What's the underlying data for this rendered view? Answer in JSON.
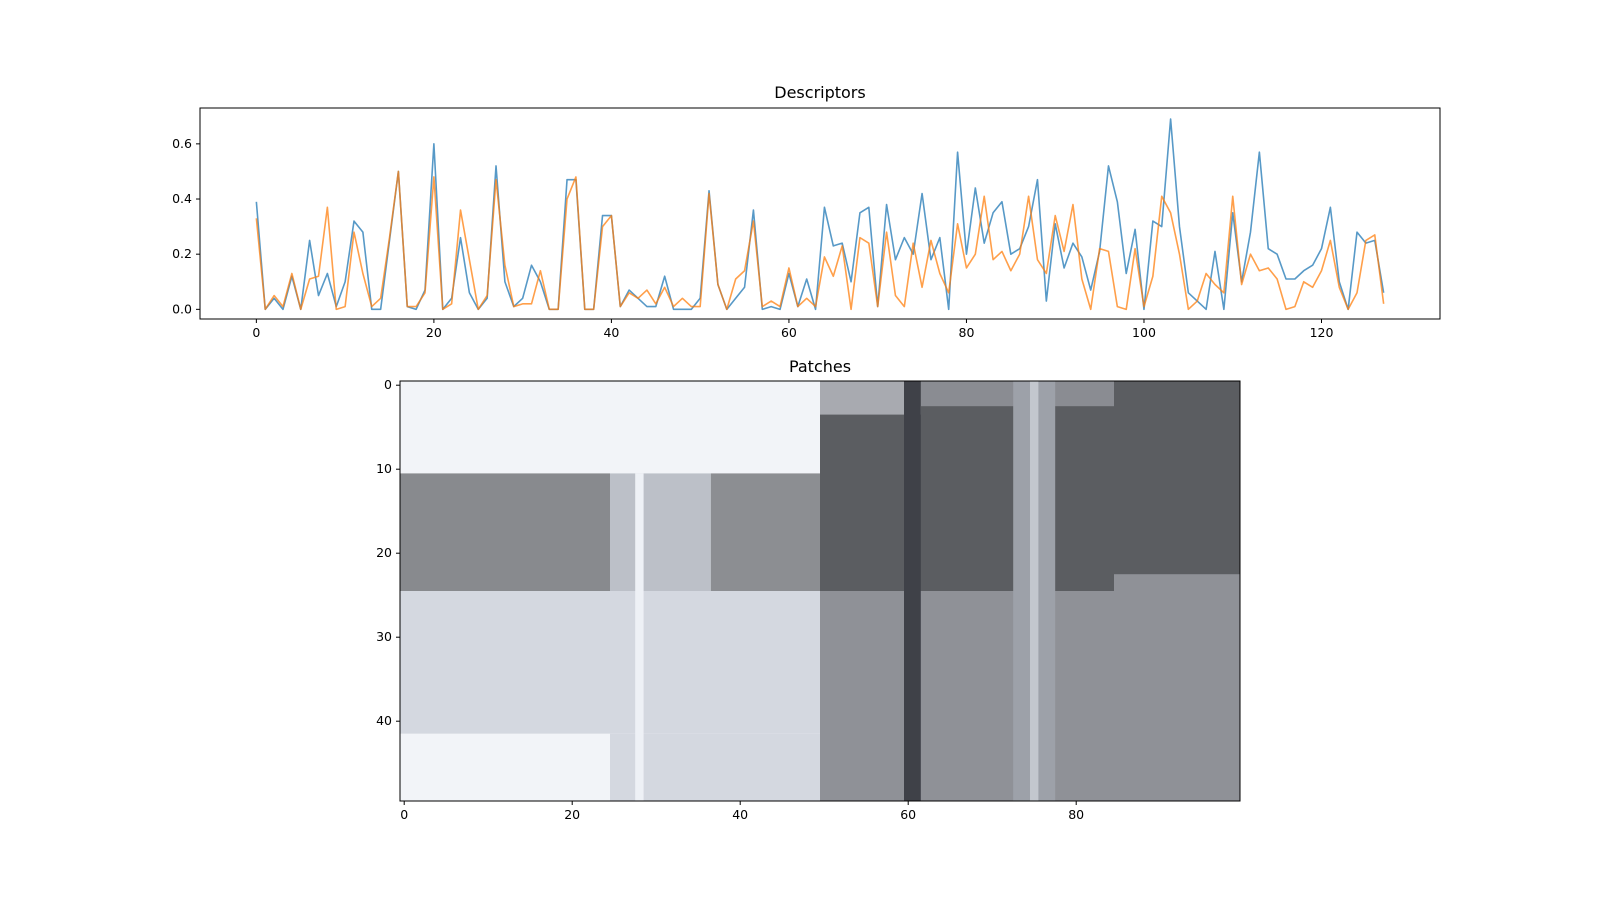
{
  "figure": {
    "background": "#ffffff"
  },
  "chart_data": [
    {
      "type": "line",
      "title": "Descriptors",
      "xlabel": "",
      "ylabel": "",
      "xlim": [
        -6.35,
        133.35
      ],
      "ylim": [
        -0.035,
        0.73
      ],
      "grid": false,
      "xticks": [
        0,
        20,
        40,
        60,
        80,
        100,
        120
      ],
      "yticks": [
        0.0,
        0.2,
        0.4,
        0.6
      ],
      "xtick_labels": [
        "0",
        "20",
        "40",
        "60",
        "80",
        "100",
        "120"
      ],
      "ytick_labels": [
        "0.0",
        "0.2",
        "0.4",
        "0.6"
      ],
      "series": [
        {
          "color": "#1f77b4",
          "values": [
            0.39,
            0.0,
            0.04,
            0.0,
            0.12,
            0.0,
            0.25,
            0.05,
            0.13,
            0.01,
            0.1,
            0.32,
            0.28,
            0.0,
            0.0,
            0.25,
            0.5,
            0.01,
            0.0,
            0.07,
            0.6,
            0.0,
            0.04,
            0.26,
            0.06,
            0.0,
            0.04,
            0.52,
            0.1,
            0.01,
            0.04,
            0.16,
            0.1,
            0.0,
            0.0,
            0.47,
            0.47,
            0.0,
            0.0,
            0.34,
            0.34,
            0.01,
            0.07,
            0.04,
            0.01,
            0.01,
            0.12,
            0.0,
            0.0,
            0.0,
            0.04,
            0.43,
            0.09,
            0.0,
            0.04,
            0.08,
            0.36,
            0.0,
            0.01,
            0.0,
            0.13,
            0.01,
            0.11,
            0.0,
            0.37,
            0.23,
            0.24,
            0.1,
            0.35,
            0.37,
            0.01,
            0.38,
            0.18,
            0.26,
            0.2,
            0.42,
            0.18,
            0.26,
            0.0,
            0.57,
            0.2,
            0.44,
            0.24,
            0.35,
            0.39,
            0.2,
            0.22,
            0.3,
            0.47,
            0.03,
            0.31,
            0.15,
            0.24,
            0.19,
            0.07,
            0.21,
            0.52,
            0.39,
            0.13,
            0.29,
            0.0,
            0.32,
            0.3,
            0.69,
            0.3,
            0.06,
            0.03,
            0.0,
            0.21,
            0.0,
            0.35,
            0.1,
            0.28,
            0.57,
            0.22,
            0.2,
            0.11,
            0.11,
            0.14,
            0.16,
            0.22,
            0.37,
            0.1,
            0.0,
            0.28,
            0.24,
            0.25,
            0.06
          ]
        },
        {
          "color": "#ff7f0e",
          "values": [
            0.33,
            0.0,
            0.05,
            0.01,
            0.13,
            0.0,
            0.11,
            0.12,
            0.37,
            0.0,
            0.01,
            0.28,
            0.13,
            0.01,
            0.04,
            0.26,
            0.5,
            0.01,
            0.01,
            0.06,
            0.48,
            0.0,
            0.02,
            0.36,
            0.18,
            0.0,
            0.05,
            0.47,
            0.16,
            0.01,
            0.02,
            0.02,
            0.14,
            0.0,
            0.0,
            0.4,
            0.48,
            0.0,
            0.0,
            0.3,
            0.34,
            0.01,
            0.06,
            0.04,
            0.07,
            0.02,
            0.08,
            0.01,
            0.04,
            0.01,
            0.01,
            0.42,
            0.09,
            0.0,
            0.11,
            0.14,
            0.32,
            0.01,
            0.03,
            0.01,
            0.15,
            0.01,
            0.04,
            0.01,
            0.19,
            0.12,
            0.23,
            0.0,
            0.26,
            0.24,
            0.01,
            0.28,
            0.05,
            0.01,
            0.24,
            0.08,
            0.25,
            0.13,
            0.06,
            0.31,
            0.15,
            0.2,
            0.41,
            0.18,
            0.21,
            0.14,
            0.2,
            0.41,
            0.18,
            0.13,
            0.34,
            0.21,
            0.38,
            0.11,
            0.0,
            0.22,
            0.21,
            0.01,
            0.0,
            0.22,
            0.01,
            0.12,
            0.41,
            0.35,
            0.2,
            0.0,
            0.03,
            0.13,
            0.09,
            0.06,
            0.41,
            0.09,
            0.2,
            0.14,
            0.15,
            0.11,
            0.0,
            0.01,
            0.1,
            0.08,
            0.14,
            0.25,
            0.08,
            0.0,
            0.06,
            0.25,
            0.27,
            0.02
          ]
        }
      ]
    },
    {
      "type": "heatmap",
      "title": "Patches",
      "colormap": "grayscale image (bluish tint)",
      "shape": [
        50,
        100
      ],
      "xticks": [
        0,
        20,
        40,
        60,
        80
      ],
      "yticks": [
        0,
        10,
        20,
        30,
        40
      ],
      "xtick_labels": [
        "0",
        "20",
        "40",
        "60",
        "80"
      ],
      "ytick_labels": [
        "0",
        "10",
        "20",
        "30",
        "40"
      ],
      "regions": [
        {
          "rows": [
            0,
            11
          ],
          "cols": [
            0,
            50
          ],
          "color": "#f2f4f8"
        },
        {
          "rows": [
            11,
            25
          ],
          "cols": [
            0,
            25
          ],
          "color": "#888a8e"
        },
        {
          "rows": [
            11,
            25
          ],
          "cols": [
            25,
            37
          ],
          "color": "#bcc0c8"
        },
        {
          "rows": [
            11,
            25
          ],
          "cols": [
            37,
            50
          ],
          "color": "#8c8e92"
        },
        {
          "rows": [
            25,
            42
          ],
          "cols": [
            0,
            50
          ],
          "color": "#d4d8e0"
        },
        {
          "rows": [
            42,
            50
          ],
          "cols": [
            0,
            25
          ],
          "color": "#f2f4f8"
        },
        {
          "rows": [
            42,
            50
          ],
          "cols": [
            25,
            50
          ],
          "color": "#d4d8e0"
        },
        {
          "rows": [
            0,
            25
          ],
          "cols": [
            50,
            100
          ],
          "color": "#5b5d61"
        },
        {
          "rows": [
            0,
            4
          ],
          "cols": [
            50,
            62
          ],
          "color": "#a8aab0"
        },
        {
          "rows": [
            0,
            3
          ],
          "cols": [
            62,
            85
          ],
          "color": "#8a8c92"
        },
        {
          "rows": [
            0,
            23
          ],
          "cols": [
            85,
            100
          ],
          "color": "#5b5d61"
        },
        {
          "rows": [
            25,
            50
          ],
          "cols": [
            50,
            100
          ],
          "color": "#8f9197"
        },
        {
          "rows": [
            23,
            50
          ],
          "cols": [
            85,
            100
          ],
          "color": "#8f9197"
        },
        {
          "rows": [
            0,
            50
          ],
          "cols": [
            60,
            62
          ],
          "color": "#3f4148"
        },
        {
          "rows": [
            0,
            50
          ],
          "cols": [
            73,
            78
          ],
          "color": "#9da1a9"
        },
        {
          "rows": [
            0,
            50
          ],
          "cols": [
            75,
            76
          ],
          "color": "#c3c7ce"
        },
        {
          "rows": [
            11,
            50
          ],
          "cols": [
            28,
            29
          ],
          "color": "#eef1f6"
        }
      ]
    }
  ]
}
